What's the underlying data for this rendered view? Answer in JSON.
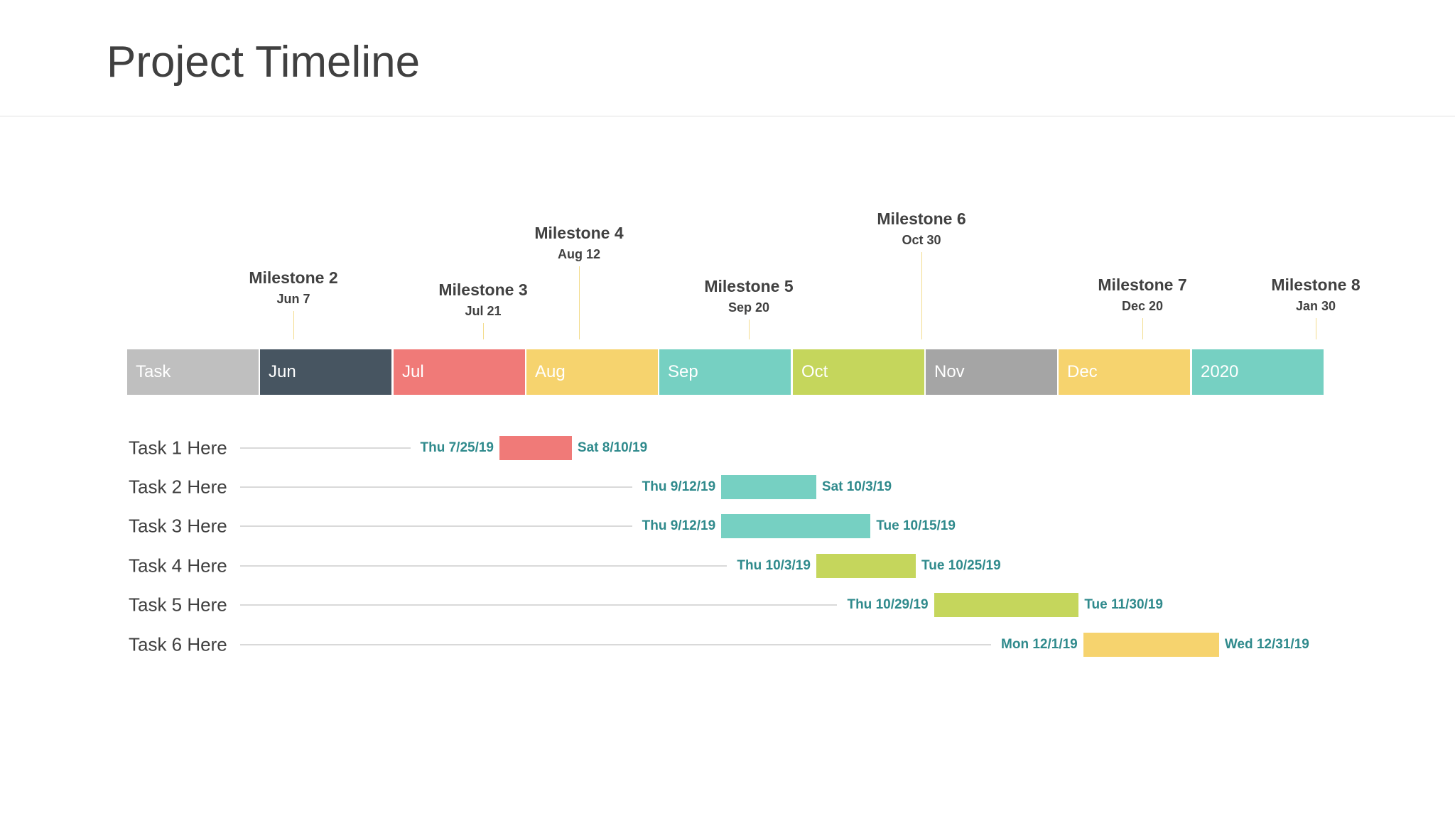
{
  "title": "Project Timeline",
  "chart_data": {
    "type": "bar",
    "subtype": "gantt",
    "header_cells": [
      {
        "label": "Task",
        "color": "#bfbfbf"
      },
      {
        "label": "Jun",
        "color": "#475561"
      },
      {
        "label": "Jul",
        "color": "#f07a78"
      },
      {
        "label": "Aug",
        "color": "#f6d36e"
      },
      {
        "label": "Sep",
        "color": "#76d0c2"
      },
      {
        "label": "Oct",
        "color": "#c5d65c"
      },
      {
        "label": "Nov",
        "color": "#a5a5a5"
      },
      {
        "label": "Dec",
        "color": "#f6d36e"
      },
      {
        "label": "2020",
        "color": "#76d0c2"
      }
    ],
    "milestones": [
      {
        "name": "Milestone 2",
        "date": "Jun 7"
      },
      {
        "name": "Milestone 3",
        "date": "Jul 21"
      },
      {
        "name": "Milestone 4",
        "date": "Aug 12"
      },
      {
        "name": "Milestone 5",
        "date": "Sep 20"
      },
      {
        "name": "Milestone 6",
        "date": "Oct 30"
      },
      {
        "name": "Milestone 7",
        "date": "Dec 20"
      },
      {
        "name": "Milestone 8",
        "date": "Jan 30"
      }
    ],
    "tasks": [
      {
        "label": "Task 1 Here",
        "start": "2019-07-25",
        "end": "2019-08-10",
        "start_label": "Thu 7/25/19",
        "end_label": "Sat 8/10/19",
        "color": "#f07a78"
      },
      {
        "label": "Task 2 Here",
        "start": "2019-09-12",
        "end": "2019-10-03",
        "start_label": "Thu 9/12/19",
        "end_label": "Sat 10/3/19",
        "color": "#76d0c2"
      },
      {
        "label": "Task 3 Here",
        "start": "2019-09-12",
        "end": "2019-10-15",
        "start_label": "Thu 9/12/19",
        "end_label": "Tue 10/15/19",
        "color": "#76d0c2"
      },
      {
        "label": "Task 4 Here",
        "start": "2019-10-03",
        "end": "2019-10-25",
        "start_label": "Thu 10/3/19",
        "end_label": "Tue 10/25/19",
        "color": "#c5d65c"
      },
      {
        "label": "Task 5 Here",
        "start": "2019-10-29",
        "end": "2019-11-30",
        "start_label": "Thu 10/29/19",
        "end_label": "Tue 11/30/19",
        "color": "#c5d65c"
      },
      {
        "label": "Task 6 Here",
        "start": "2019-12-01",
        "end": "2019-12-31",
        "start_label": "Mon 12/1/19",
        "end_label": "Wed 12/31/19",
        "color": "#f6d36e"
      }
    ],
    "date_label_color": "#2f8a8c"
  }
}
